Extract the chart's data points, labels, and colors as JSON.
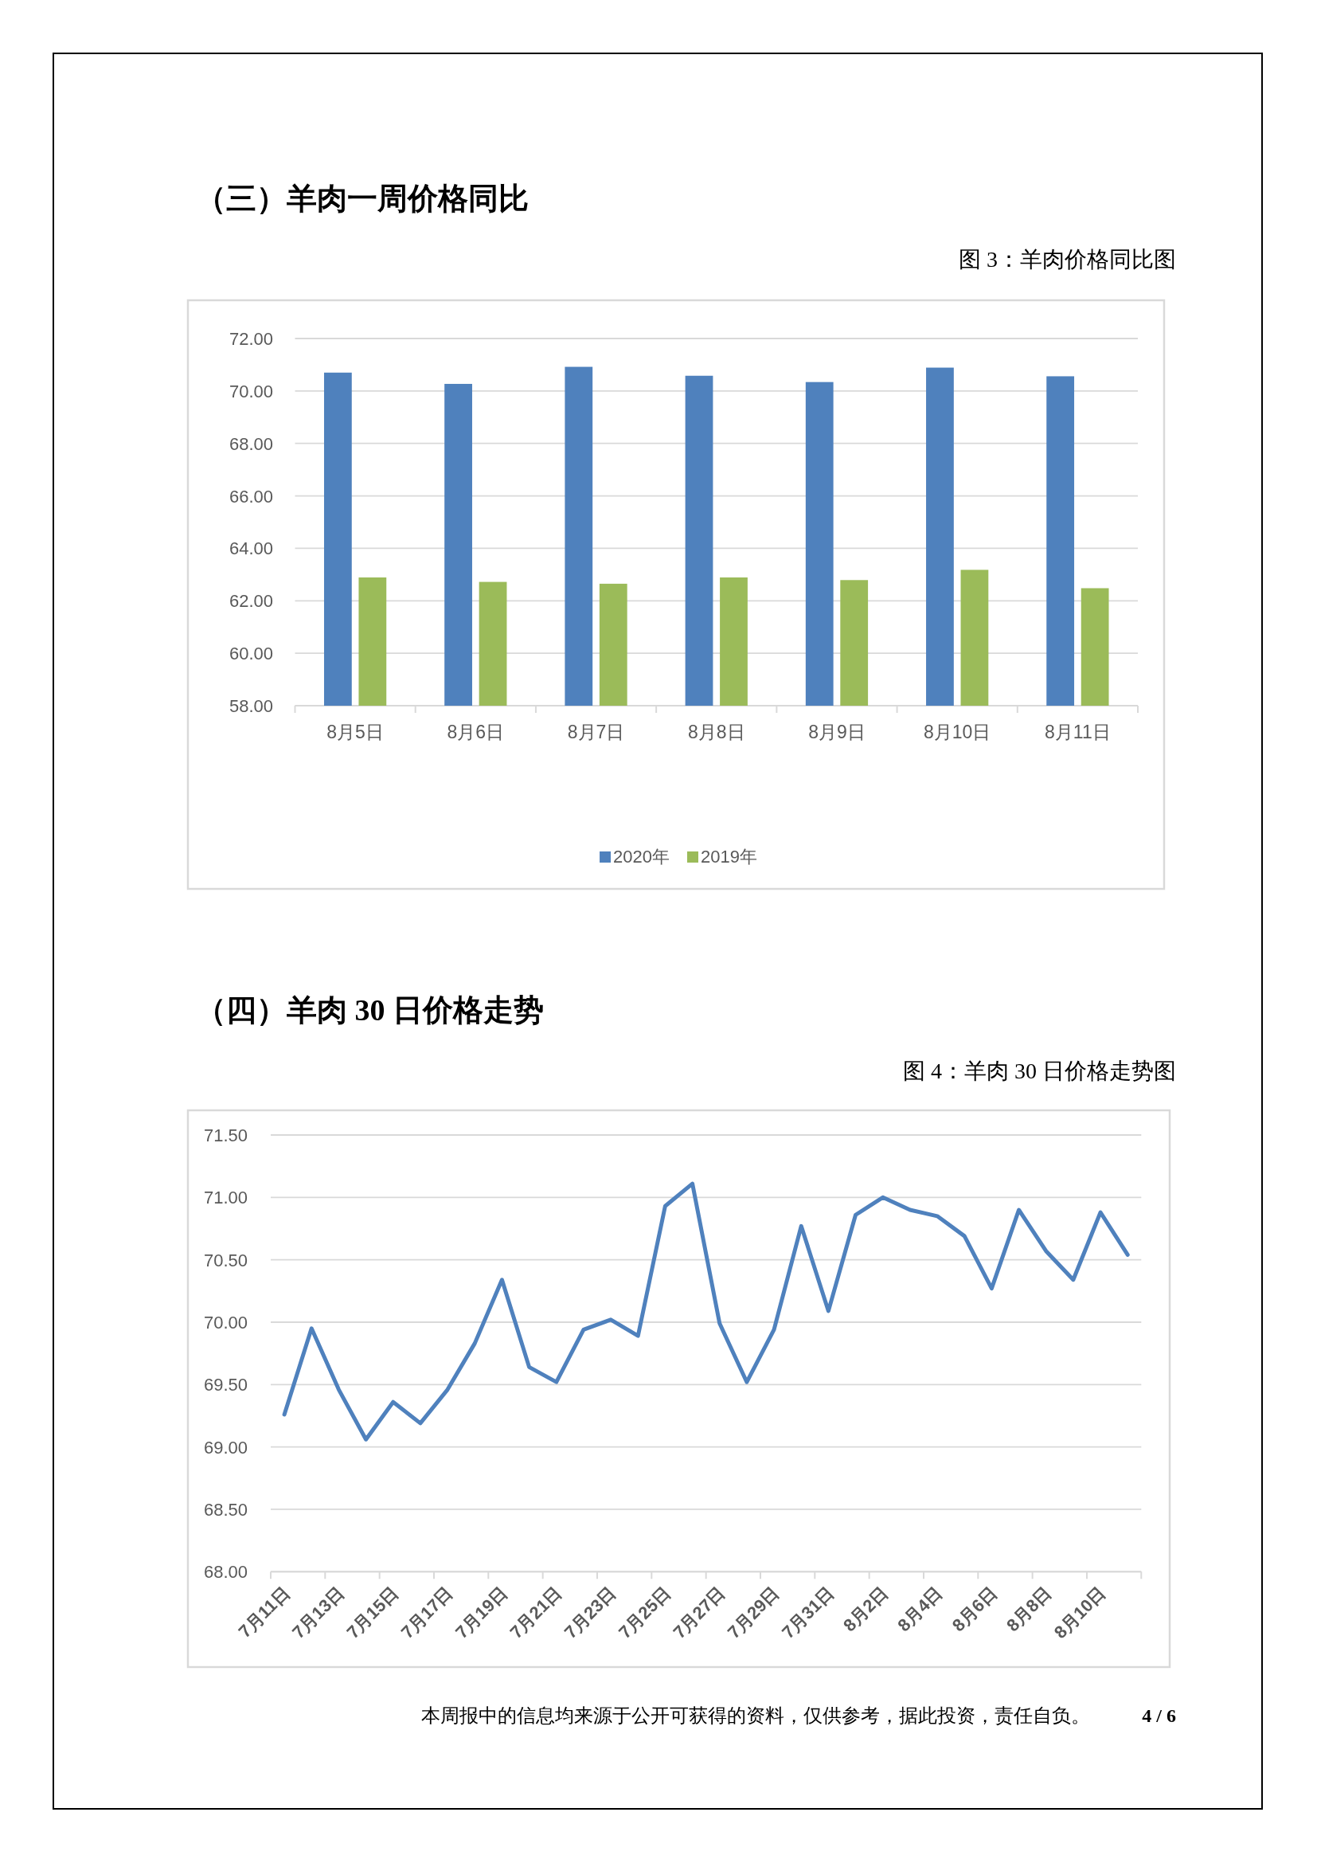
{
  "chart_data": [
    {
      "type": "bar",
      "title": "（三）羊肉一周价格同比",
      "subtitle": "图 3：羊肉价格同比图",
      "categories": [
        "8月5日",
        "8月6日",
        "8月7日",
        "8月8日",
        "8月9日",
        "8月10日",
        "8月11日"
      ],
      "series": [
        {
          "name": "2020年",
          "color": "#4f81bd",
          "values": [
            70.7,
            70.27,
            70.92,
            70.58,
            70.34,
            70.89,
            70.56
          ]
        },
        {
          "name": "2019年",
          "color": "#9bbb59",
          "values": [
            62.89,
            62.72,
            62.65,
            62.89,
            62.79,
            63.18,
            62.48
          ]
        }
      ],
      "ylim": [
        58,
        72
      ],
      "yticks": [
        {
          "value": 58,
          "label": "58.00"
        },
        {
          "value": 60,
          "label": "60.00"
        },
        {
          "value": 62,
          "label": "62.00"
        },
        {
          "value": 64,
          "label": "64.00"
        },
        {
          "value": 66,
          "label": "66.00"
        },
        {
          "value": 68,
          "label": "68.00"
        },
        {
          "value": 70,
          "label": "70.00"
        },
        {
          "value": 72,
          "label": "72.00"
        }
      ],
      "grid": "y",
      "legend": "bottom"
    },
    {
      "type": "line",
      "title": "（四）羊肉 30 日价格走势",
      "subtitle": "图 4：羊肉 30 日价格走势图",
      "categories": [
        "7月11日",
        null,
        "7月13日",
        null,
        "7月15日",
        null,
        "7月17日",
        null,
        "7月19日",
        null,
        "7月21日",
        null,
        "7月23日",
        null,
        "7月25日",
        null,
        "7月27日",
        null,
        "7月29日",
        null,
        "7月31日",
        null,
        "8月2日",
        null,
        "8月4日",
        null,
        "8月6日",
        null,
        "8月8日",
        null,
        "8月10日",
        null
      ],
      "series": [
        {
          "color": "#4f81bd",
          "values": [
            69.26,
            69.95,
            69.46,
            69.06,
            69.36,
            69.19,
            69.46,
            69.83,
            70.34,
            69.64,
            69.52,
            69.94,
            70.02,
            69.89,
            70.93,
            71.11,
            69.99,
            69.52,
            69.94,
            70.77,
            70.09,
            70.86,
            71.0,
            70.9,
            70.85,
            70.69,
            70.27,
            70.9,
            70.57,
            70.34,
            70.88,
            70.54
          ]
        }
      ],
      "ylim": [
        68,
        71.5
      ],
      "yticks": [
        {
          "value": 68,
          "label": "68.00"
        },
        {
          "value": 68.5,
          "label": "68.50"
        },
        {
          "value": 69,
          "label": "69.00"
        },
        {
          "value": 69.5,
          "label": "69.50"
        },
        {
          "value": 70,
          "label": "70.00"
        },
        {
          "value": 70.5,
          "label": "70.50"
        },
        {
          "value": 71,
          "label": "71.00"
        },
        {
          "value": 71.5,
          "label": "71.50"
        }
      ],
      "grid": "y",
      "annotations": [
        "本周报中的信息均来源于公开可获得的资料，仅供参考，据此投资，责任自负。",
        "4 / 6"
      ]
    }
  ]
}
